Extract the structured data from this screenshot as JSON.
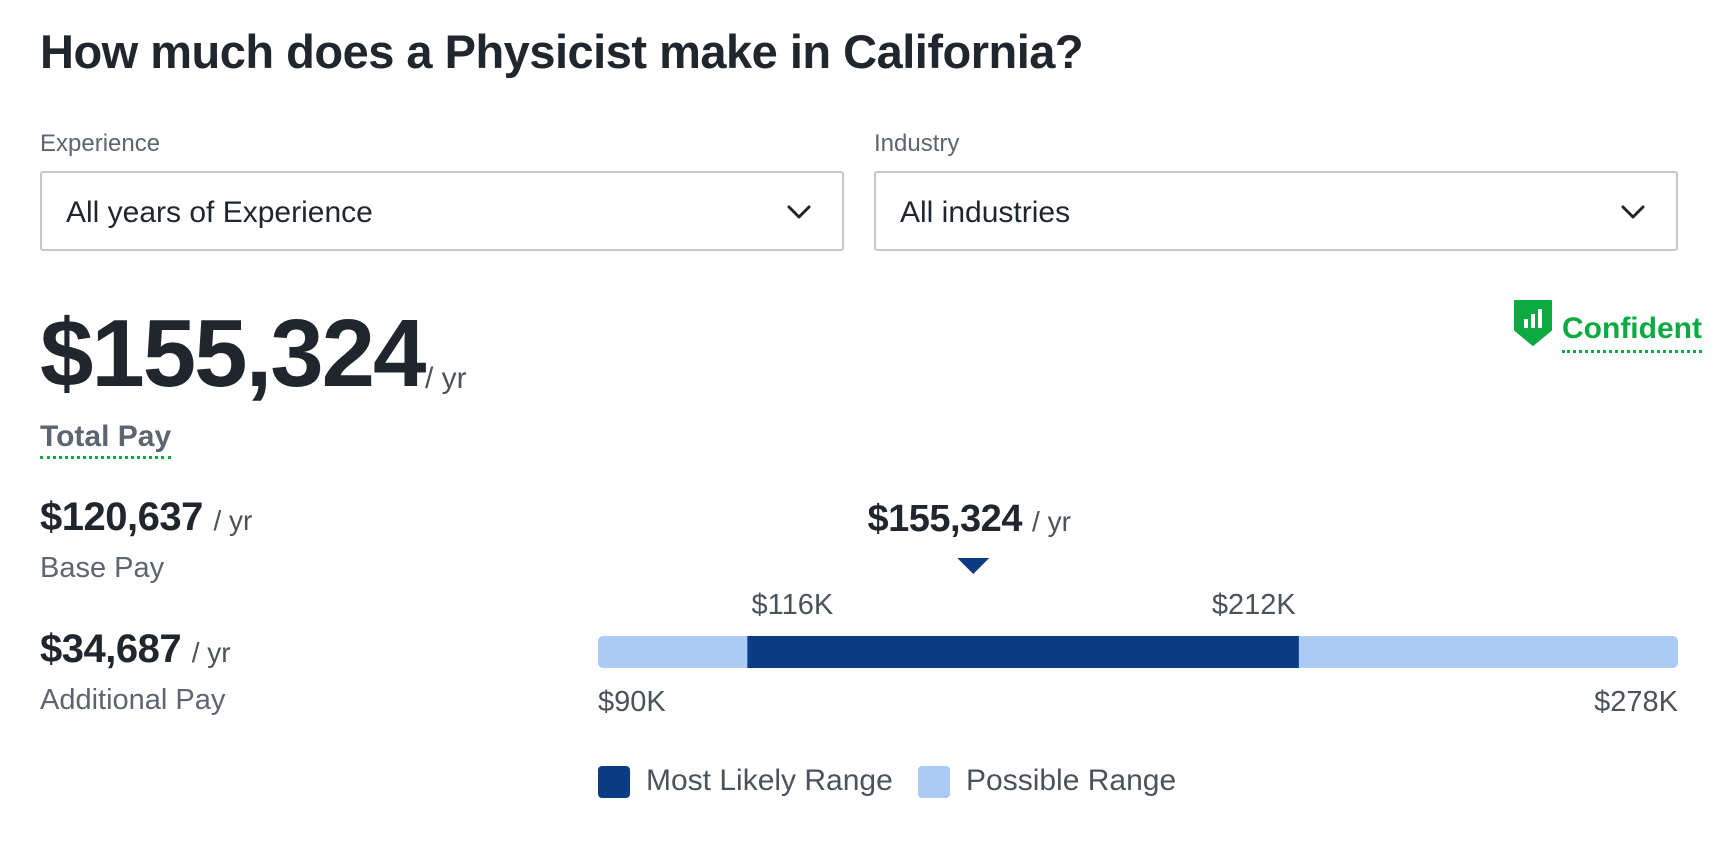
{
  "title": "How much does a Physicist make in California?",
  "filters": {
    "experience": {
      "label": "Experience",
      "value": "All years of Experience"
    },
    "industry": {
      "label": "Industry",
      "value": "All industries"
    }
  },
  "total": {
    "amount": "$155,324",
    "per": "/ yr",
    "label": "Total Pay"
  },
  "confidence": {
    "label": "Confident",
    "color": "#0caa41"
  },
  "base": {
    "amount": "$120,637",
    "per": "/ yr",
    "label": "Base Pay"
  },
  "additional": {
    "amount": "$34,687",
    "per": "/ yr",
    "label": "Additional Pay"
  },
  "chart_data": {
    "type": "range",
    "possible_range": [
      90000,
      278000
    ],
    "most_likely_range": [
      116000,
      212000
    ],
    "marker_value": 155324,
    "marker_label": "$155,324",
    "marker_per": "/ yr",
    "range_labels": {
      "min": "$90K",
      "max": "$278K",
      "likely_low": "$116K",
      "likely_high": "$212K"
    },
    "legend": [
      {
        "label": "Most Likely Range",
        "color": "#0c3c84"
      },
      {
        "label": "Possible Range",
        "color": "#abcbf5"
      }
    ]
  }
}
